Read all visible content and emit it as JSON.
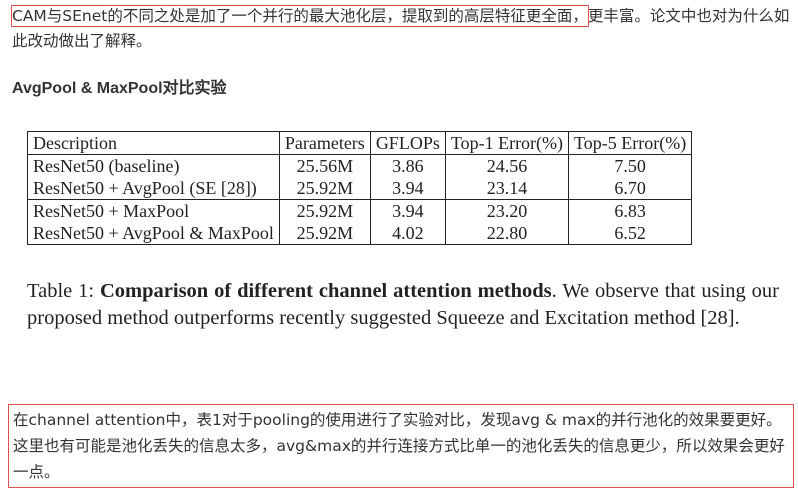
{
  "intro": {
    "highlighted": "CAM与SEnet的不同之处是加了一个并行的最大池化层，提取到的高层特征更全面，",
    "rest": "更丰富。论文中也对为什么如此改动做出了解释。"
  },
  "section_title": "AvgPool & MaxPool对比实验",
  "table": {
    "headers": [
      "Description",
      "Parameters",
      "GFLOPs",
      "Top-1 Error(%)",
      "Top-5 Error(%)"
    ],
    "rows": [
      [
        "ResNet50 (baseline)",
        "25.56M",
        "3.86",
        "24.56",
        "7.50"
      ],
      [
        "ResNet50 + AvgPool (SE [28])",
        "25.92M",
        "3.94",
        "23.14",
        "6.70"
      ],
      [
        "ResNet50 + MaxPool",
        "25.92M",
        "3.94",
        "23.20",
        "6.83"
      ],
      [
        "ResNet50 + AvgPool & MaxPool",
        "25.92M",
        "4.02",
        "22.80",
        "6.52"
      ]
    ]
  },
  "caption": {
    "prefix": "Table 1: ",
    "bold": "Comparison of different channel attention methods",
    "rest": ". We observe that using our proposed method outperforms recently suggested Squeeze and Excitation method [28]."
  },
  "note": "在channel attention中，表1对于pooling的使用进行了实验对比，发现avg & max的并行池化的效果要更好。这里也有可能是池化丢失的信息太多，avg&max的并行连接方式比单一的池化丢失的信息更少，所以效果会更好一点。",
  "colors": {
    "highlight_border": "#d9534f",
    "text": "#333333"
  }
}
